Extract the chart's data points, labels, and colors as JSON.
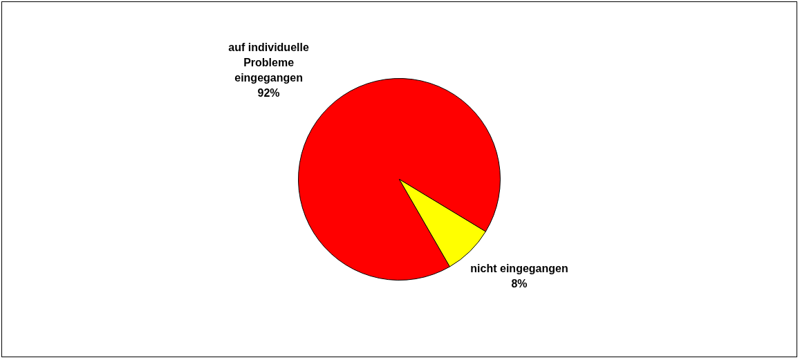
{
  "chart_data": {
    "type": "pie",
    "categories": [
      "auf individuelle Probleme eingegangen",
      "nicht eingegangen"
    ],
    "values": [
      92,
      8
    ],
    "colors": [
      "#ff0000",
      "#ffff00"
    ],
    "value_labels": [
      "92%",
      "8%"
    ],
    "legend": false
  }
}
